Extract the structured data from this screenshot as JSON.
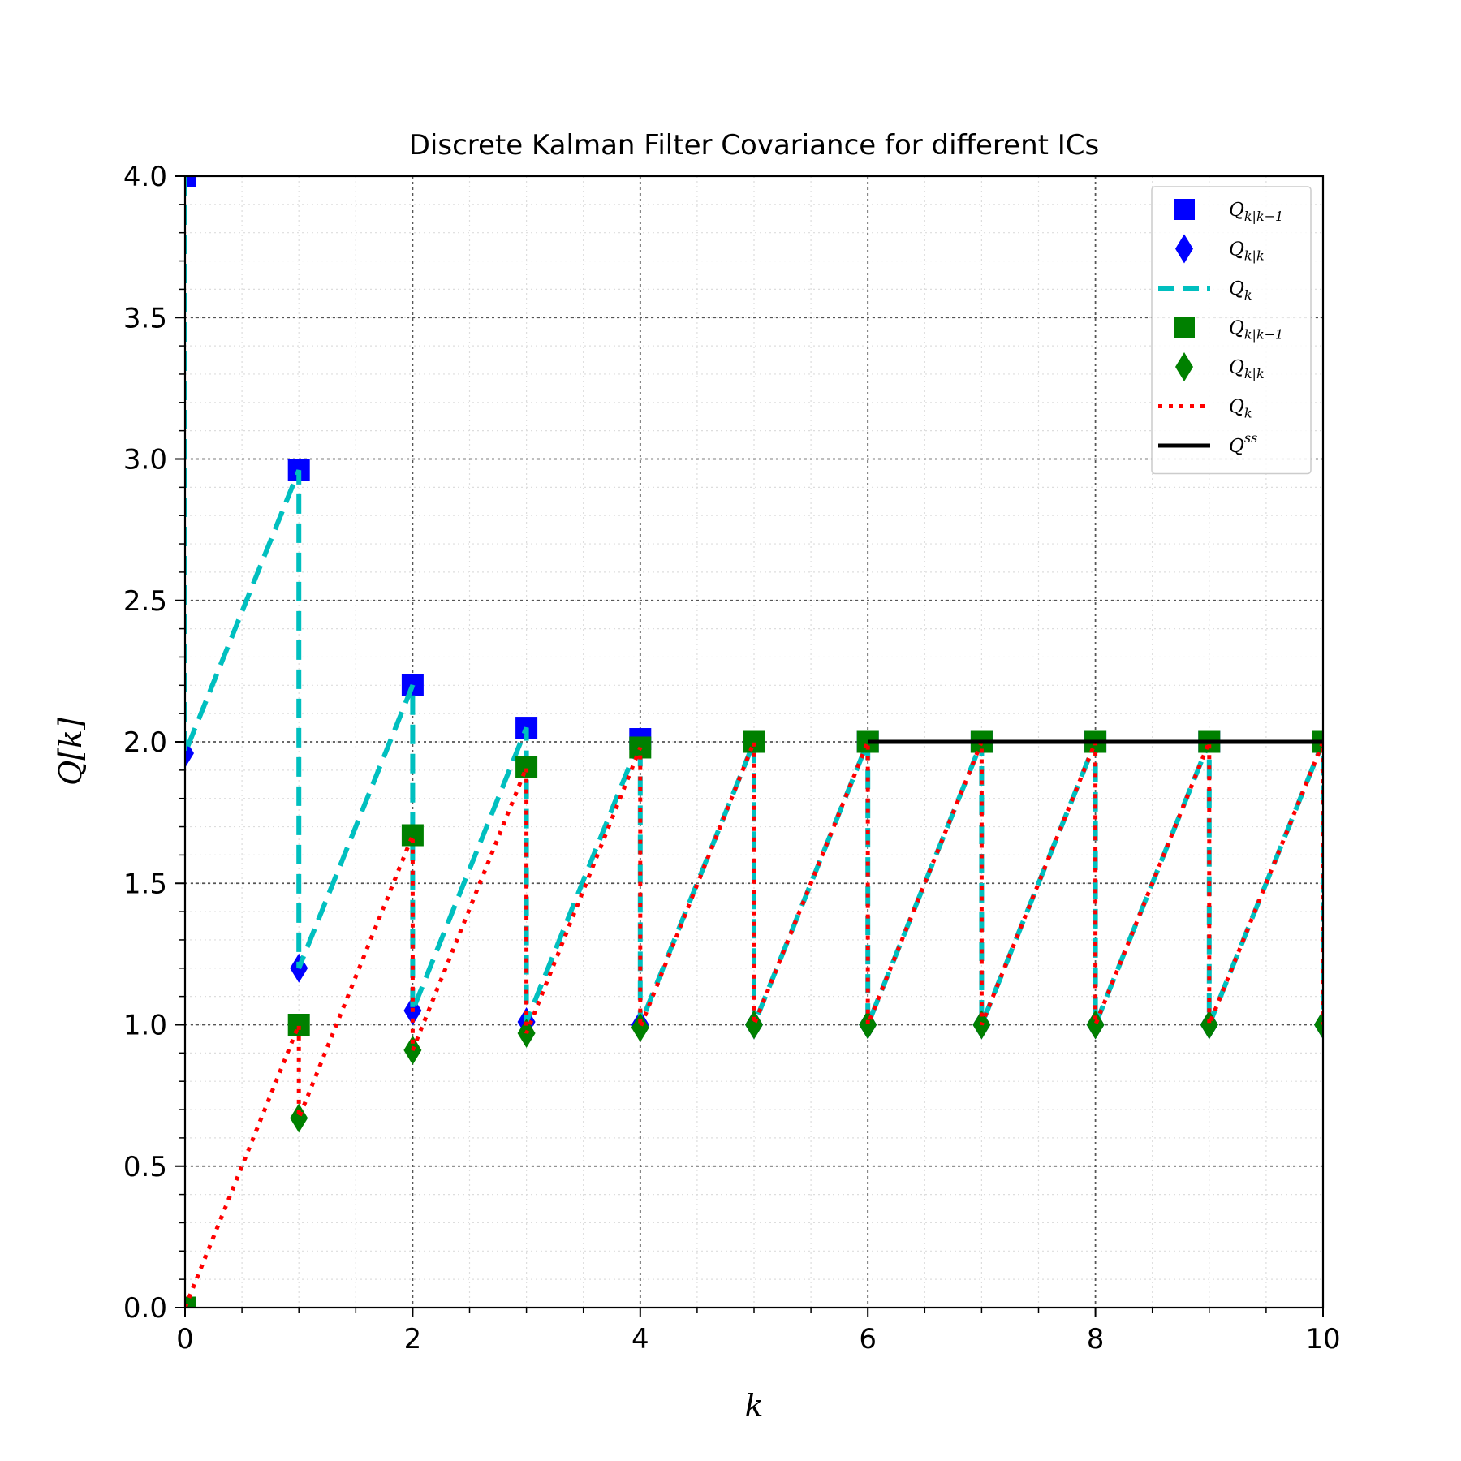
{
  "chart_data": {
    "type": "line",
    "title": "Discrete Kalman Filter Covariance for different ICs",
    "xlabel": "k",
    "ylabel": "Q[k]",
    "xlim": [
      0,
      10
    ],
    "ylim": [
      0,
      4.0
    ],
    "x_ticks": [
      0,
      2,
      4,
      6,
      8,
      10
    ],
    "x_tick_labels": [
      "0",
      "2",
      "4",
      "6",
      "8",
      "10"
    ],
    "y_ticks": [
      0,
      0.5,
      1.0,
      1.5,
      2.0,
      2.5,
      3.0,
      3.5,
      4.0
    ],
    "y_tick_labels": [
      "0.0",
      "0.5",
      "1.0",
      "1.5",
      "2.0",
      "2.5",
      "3.0",
      "3.5",
      "4.0"
    ],
    "grid": true,
    "legend_position": "top-right",
    "colors": {
      "ic1_markers": "#0000ff",
      "ic1_line": "#00bfbf",
      "ic2_markers": "#008000",
      "ic2_line": "#ff0000",
      "steady_state": "#000000"
    },
    "ic1": {
      "prior_x": [
        0,
        1,
        2,
        3,
        4,
        5,
        6,
        7,
        8,
        9,
        10
      ],
      "prior_values": [
        4.0,
        2.96,
        2.2,
        2.05,
        2.01,
        2.0,
        2.0,
        2.0,
        2.0,
        2.0,
        2.0
      ],
      "posterior_x": [
        0,
        1,
        2,
        3,
        4,
        5,
        6,
        7,
        8,
        9,
        10
      ],
      "posterior_values": [
        1.96,
        1.2,
        1.05,
        1.01,
        1.0,
        1.0,
        1.0,
        1.0,
        1.0,
        1.0,
        1.0
      ]
    },
    "ic2": {
      "prior_x": [
        0,
        1,
        2,
        3,
        4,
        5,
        6,
        7,
        8,
        9,
        10
      ],
      "prior_values": [
        0.0,
        1.0,
        1.67,
        1.91,
        1.98,
        2.0,
        2.0,
        2.0,
        2.0,
        2.0,
        2.0
      ],
      "posterior_x": [
        1,
        2,
        3,
        4,
        5,
        6,
        7,
        8,
        9,
        10
      ],
      "posterior_values": [
        0.67,
        0.91,
        0.97,
        0.99,
        1.0,
        1.0,
        1.0,
        1.0,
        1.0,
        1.0
      ]
    },
    "steady_state": {
      "x": [
        6,
        10
      ],
      "value": 2.0
    },
    "legend": [
      {
        "kind": "square",
        "color": "#0000ff",
        "label": "Q",
        "sub": "k|k−1",
        "sup": ""
      },
      {
        "kind": "diamond",
        "color": "#0000ff",
        "label": "Q",
        "sub": "k|k",
        "sup": ""
      },
      {
        "kind": "dashed",
        "color": "#00bfbf",
        "label": "Q",
        "sub": "k",
        "sup": ""
      },
      {
        "kind": "square",
        "color": "#008000",
        "label": "Q",
        "sub": "k|k−1",
        "sup": ""
      },
      {
        "kind": "diamond",
        "color": "#008000",
        "label": "Q",
        "sub": "k|k",
        "sup": ""
      },
      {
        "kind": "dotted",
        "color": "#ff0000",
        "label": "Q",
        "sub": "k",
        "sup": ""
      },
      {
        "kind": "solid",
        "color": "#000000",
        "label": "Q",
        "sub": "",
        "sup": "ss"
      }
    ]
  }
}
